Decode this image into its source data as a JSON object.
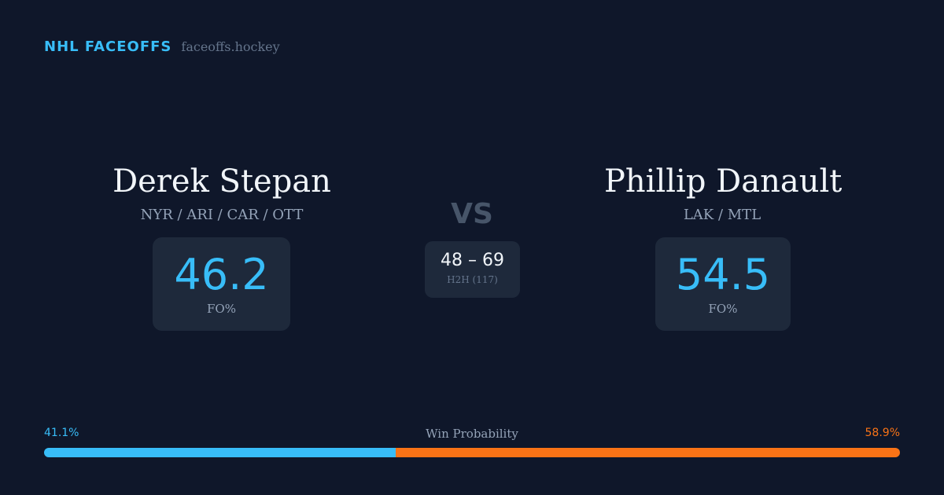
{
  "brand": {
    "name": "NHL FACEOFFS",
    "url": "faceoffs.hockey"
  },
  "player_left": {
    "name": "Derek Stepan",
    "teams": "NYR / ARI / CAR / OTT",
    "fo_value": "46.2",
    "fo_label": "FO%"
  },
  "player_right": {
    "name": "Phillip Danault",
    "teams": "LAK / MTL",
    "fo_value": "54.5",
    "fo_label": "FO%"
  },
  "matchup": {
    "vs_label": "VS",
    "h2h_score": "48 – 69",
    "h2h_label": "H2H (117)"
  },
  "win_probability": {
    "title": "Win Probability",
    "left_label": "41.1%",
    "right_label": "58.9%",
    "left_pct": 41.1,
    "right_pct": 58.9
  },
  "colors": {
    "background": "#0f172a",
    "card": "#1e293b",
    "accent_blue": "#38bdf8",
    "accent_orange": "#f97316"
  }
}
